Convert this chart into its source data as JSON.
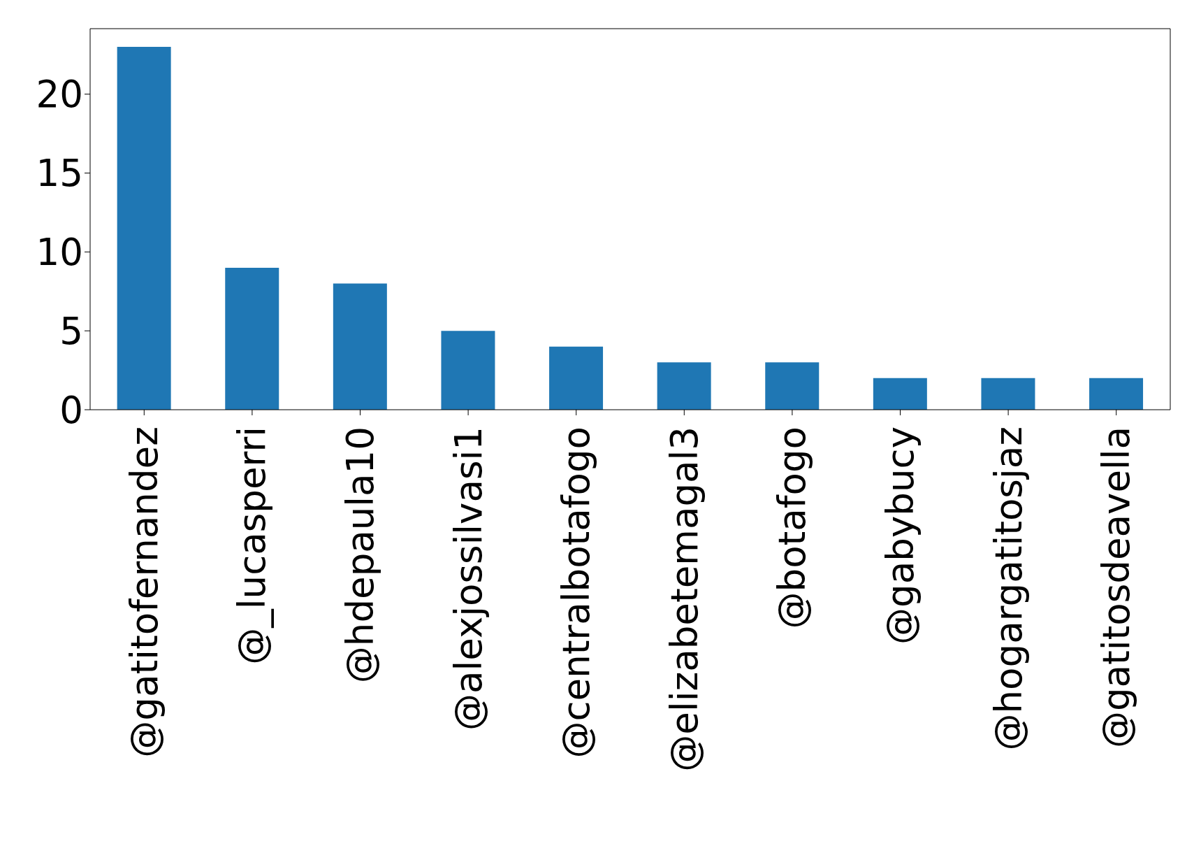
{
  "chart_data": {
    "type": "bar",
    "categories": [
      "@gatitofernandez",
      "@_lucasperri",
      "@hdepaula10",
      "@alexjossilvasi1",
      "@centralbotafogo",
      "@elizabetemagal3",
      "@botafogo",
      "@gabybucy",
      "@hogargatitosjaz",
      "@gatitosdeavella"
    ],
    "values": [
      23,
      9,
      8,
      5,
      4,
      3,
      3,
      2,
      2,
      2
    ],
    "color": "#1f77b4",
    "ylim": [
      0,
      24.15
    ],
    "yticks": [
      0,
      5,
      10,
      15,
      20
    ],
    "grid": false
  }
}
